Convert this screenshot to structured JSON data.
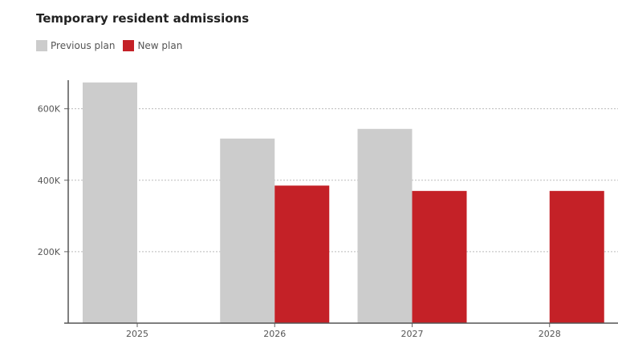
{
  "chart_data": {
    "type": "bar",
    "title": "Temporary resident admissions",
    "categories": [
      "2025",
      "2026",
      "2027",
      "2028"
    ],
    "series": [
      {
        "name": "Previous plan",
        "color": "#cccccc",
        "values": [
          673650,
          516600,
          543600,
          null
        ]
      },
      {
        "name": "New plan",
        "color": "#c42127",
        "values": [
          null,
          385000,
          370000,
          370000
        ]
      }
    ],
    "yticks": [
      200000,
      400000,
      600000
    ],
    "ytick_labels": [
      "200K",
      "400K",
      "600K"
    ],
    "ylim": [
      0,
      680000
    ],
    "grid": true,
    "legend_position": "top-left"
  }
}
